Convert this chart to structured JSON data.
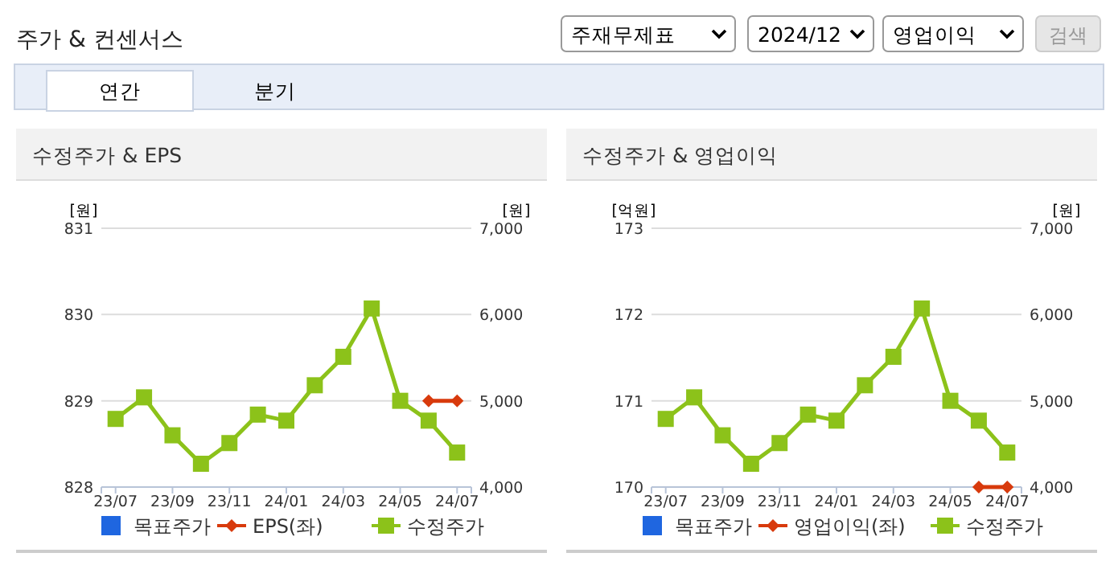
{
  "chart_data": [
    {
      "type": "other",
      "title": "주가 & 컨센서스",
      "annotations": [
        "주재무제표",
        "2024/12",
        "영업이익",
        "검색",
        "연간",
        "분기"
      ]
    },
    {
      "type": "line",
      "title": "수정주가 & EPS",
      "ylabel": "[원]",
      "y2label": "[원]",
      "categories": [
        "23/07",
        null,
        "23/09",
        null,
        "23/11",
        null,
        "24/01",
        null,
        "24/03",
        null,
        "24/05",
        null,
        "24/07"
      ],
      "ylim": [
        828,
        831
      ],
      "yticks": [
        828,
        829,
        830,
        831
      ],
      "y2lim": [
        4000,
        7000
      ],
      "y2ticks": [
        {
          "value": 4000,
          "label": "4,000"
        },
        {
          "value": 5000,
          "label": "5,000"
        },
        {
          "value": 6000,
          "label": "6,000"
        },
        {
          "value": 7000,
          "label": "7,000"
        }
      ],
      "grid": "y",
      "legend": "bottom",
      "series": [
        {
          "name": "목표주가",
          "type": "bar",
          "color": "#1f66e0",
          "axis": "y2",
          "values": [
            null,
            null,
            null,
            null,
            null,
            null,
            null,
            null,
            null,
            null,
            null,
            null,
            null
          ]
        },
        {
          "name": "EPS(좌)",
          "type": "line",
          "marker": "diamond",
          "color": "#d83a0c",
          "values": [
            null,
            null,
            null,
            null,
            null,
            null,
            null,
            null,
            null,
            null,
            null,
            829,
            829
          ]
        },
        {
          "name": "수정주가",
          "type": "line",
          "marker": "square",
          "color": "#8cc21a",
          "axis": "y2",
          "values": [
            4790,
            5040,
            4600,
            4270,
            4510,
            4840,
            4770,
            5180,
            5510,
            6070,
            5000,
            4770,
            4400
          ]
        }
      ]
    },
    {
      "type": "line",
      "title": "수정주가 & 영업이익",
      "ylabel": "[억원]",
      "y2label": "[원]",
      "categories": [
        "23/07",
        null,
        "23/09",
        null,
        "23/11",
        null,
        "24/01",
        null,
        "24/03",
        null,
        "24/05",
        null,
        "24/07"
      ],
      "ylim": [
        170,
        173
      ],
      "yticks": [
        170,
        171,
        172,
        173
      ],
      "y2lim": [
        4000,
        7000
      ],
      "y2ticks": [
        {
          "value": 4000,
          "label": "4,000"
        },
        {
          "value": 5000,
          "label": "5,000"
        },
        {
          "value": 6000,
          "label": "6,000"
        },
        {
          "value": 7000,
          "label": "7,000"
        }
      ],
      "grid": "y",
      "legend": "bottom",
      "series": [
        {
          "name": "목표주가",
          "type": "bar",
          "color": "#1f66e0",
          "axis": "y2",
          "values": [
            null,
            null,
            null,
            null,
            null,
            null,
            null,
            null,
            null,
            null,
            null,
            null,
            null
          ]
        },
        {
          "name": "영업이익(좌)",
          "type": "line",
          "marker": "diamond",
          "color": "#d83a0c",
          "values": [
            null,
            null,
            null,
            null,
            null,
            null,
            null,
            null,
            null,
            null,
            null,
            170,
            170
          ]
        },
        {
          "name": "수정주가",
          "type": "line",
          "marker": "square",
          "color": "#8cc21a",
          "axis": "y2",
          "values": [
            4790,
            5040,
            4600,
            4270,
            4510,
            4840,
            4770,
            5180,
            5510,
            6070,
            5000,
            4770,
            4400
          ]
        }
      ]
    }
  ]
}
